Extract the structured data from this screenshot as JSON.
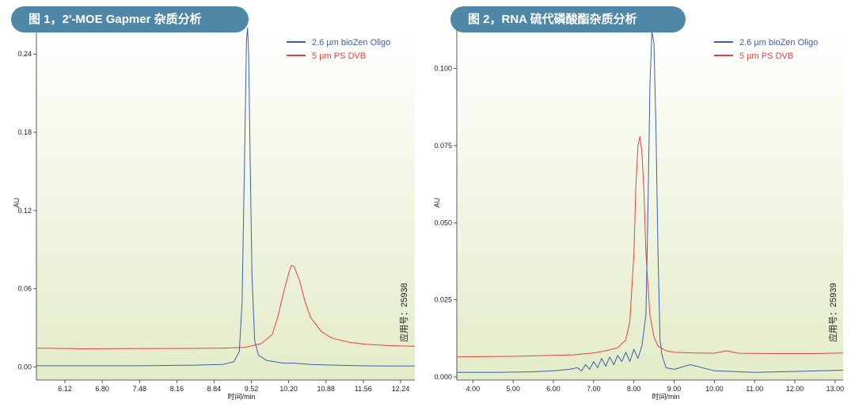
{
  "charts": [
    {
      "title": "图 1，2'-MOE Gapmer 杂质分析",
      "app_number": "应用号：25938",
      "colors": {
        "blue": "#3b5fb0",
        "red": "#e8423f",
        "bg_top": "#ffffff",
        "bg_bottom": "#e3ecc8"
      }
    },
    {
      "title": "图 2，RNA 硫代磷酸酯杂质分析",
      "app_number": "应用号：25939",
      "colors": {
        "blue": "#3b5fb0",
        "red": "#e8423f",
        "bg_top": "#ffffff",
        "bg_bottom": "#e3ecc8"
      }
    }
  ],
  "chart_data": [
    {
      "type": "line",
      "xlabel": "时间/min",
      "ylabel": "AU",
      "xlim": [
        5.6,
        12.5
      ],
      "ylim": [
        -0.01,
        0.262
      ],
      "xticks": [
        "6.12",
        "6.80",
        "7.48",
        "8.16",
        "8.84",
        "9.52",
        "10.20",
        "10.88",
        "11.56",
        "12.24"
      ],
      "yticks": [
        "0.00",
        "0.06",
        "0.12",
        "0.18",
        "0.24"
      ],
      "legend_position": "top-right",
      "series": [
        {
          "name": "2.6 µm bioZen Oligo",
          "color": "blue",
          "x": [
            5.6,
            6.5,
            7.5,
            8.5,
            9.0,
            9.2,
            9.3,
            9.35,
            9.4,
            9.43,
            9.45,
            9.47,
            9.5,
            9.53,
            9.58,
            9.65,
            9.8,
            9.95,
            10.1,
            10.3,
            10.6,
            11.0,
            11.5,
            12.0,
            12.5
          ],
          "y": [
            0.001,
            0.001,
            0.001,
            0.0015,
            0.002,
            0.004,
            0.012,
            0.05,
            0.17,
            0.25,
            0.26,
            0.24,
            0.15,
            0.07,
            0.02,
            0.009,
            0.005,
            0.004,
            0.003,
            0.003,
            0.002,
            0.0015,
            0.001,
            0.0008,
            0.0008
          ]
        },
        {
          "name": "5 µm PS DVB",
          "color": "red",
          "x": [
            5.6,
            6.5,
            7.5,
            8.5,
            9.0,
            9.4,
            9.7,
            9.9,
            10.0,
            10.1,
            10.2,
            10.25,
            10.3,
            10.4,
            10.5,
            10.6,
            10.8,
            11.0,
            11.3,
            11.6,
            12.0,
            12.5
          ],
          "y": [
            0.0145,
            0.014,
            0.0142,
            0.0143,
            0.0145,
            0.015,
            0.018,
            0.025,
            0.038,
            0.056,
            0.072,
            0.078,
            0.077,
            0.066,
            0.05,
            0.038,
            0.027,
            0.022,
            0.019,
            0.0175,
            0.0165,
            0.016
          ]
        }
      ]
    },
    {
      "type": "line",
      "xlabel": "时间/min",
      "ylabel": "AU",
      "xlim": [
        3.6,
        13.2
      ],
      "ylim": [
        -0.001,
        0.114
      ],
      "xticks": [
        "4.00",
        "5.00",
        "6.00",
        "7.00",
        "8.00",
        "9.00",
        "10.00",
        "11.00",
        "12.00",
        "13.00"
      ],
      "yticks": [
        "0.000",
        "0.025",
        "0.050",
        "0.075",
        "0.100"
      ],
      "legend_position": "top-right",
      "series": [
        {
          "name": "2.6 µm bioZen Oligo",
          "color": "blue",
          "x": [
            3.6,
            4.5,
            5.5,
            6.0,
            6.4,
            6.6,
            6.7,
            6.8,
            6.9,
            7.0,
            7.1,
            7.2,
            7.3,
            7.4,
            7.5,
            7.6,
            7.7,
            7.8,
            7.9,
            8.0,
            8.1,
            8.2,
            8.3,
            8.35,
            8.4,
            8.45,
            8.5,
            8.55,
            8.6,
            8.65,
            8.7,
            8.8,
            9.0,
            9.4,
            10.0,
            11.0,
            12.0,
            13.2
          ],
          "y": [
            0.0015,
            0.0015,
            0.0017,
            0.002,
            0.0025,
            0.003,
            0.002,
            0.004,
            0.0025,
            0.005,
            0.003,
            0.006,
            0.0035,
            0.0065,
            0.004,
            0.007,
            0.005,
            0.008,
            0.005,
            0.009,
            0.006,
            0.01,
            0.02,
            0.055,
            0.095,
            0.112,
            0.108,
            0.08,
            0.04,
            0.012,
            0.007,
            0.003,
            0.0025,
            0.004,
            0.002,
            0.0015,
            0.0018,
            0.0022
          ]
        },
        {
          "name": "5 µm PS DVB",
          "color": "red",
          "x": [
            3.6,
            5.0,
            6.5,
            7.0,
            7.3,
            7.6,
            7.8,
            7.9,
            8.0,
            8.05,
            8.1,
            8.15,
            8.2,
            8.25,
            8.3,
            8.4,
            8.5,
            8.6,
            8.8,
            9.0,
            9.5,
            10.0,
            10.3,
            10.6,
            11.5,
            12.5,
            13.2
          ],
          "y": [
            0.0065,
            0.0067,
            0.0072,
            0.0078,
            0.0085,
            0.0095,
            0.012,
            0.018,
            0.04,
            0.062,
            0.075,
            0.078,
            0.073,
            0.06,
            0.04,
            0.02,
            0.013,
            0.01,
            0.0085,
            0.008,
            0.0078,
            0.0077,
            0.0085,
            0.0077,
            0.0076,
            0.0076,
            0.0078
          ]
        }
      ]
    }
  ]
}
